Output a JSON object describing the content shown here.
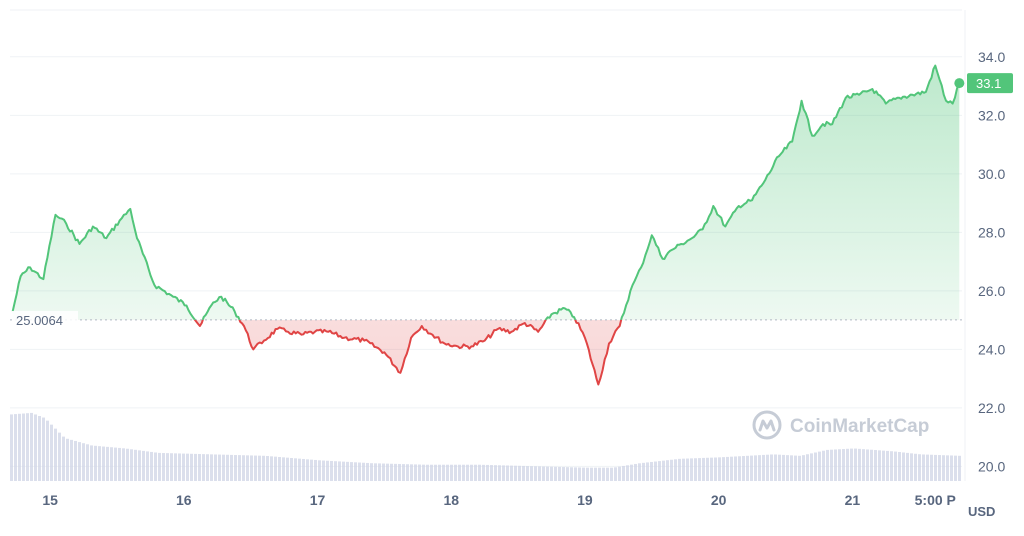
{
  "watermark": "CoinMarketCap",
  "colors": {
    "up": "#52c57a",
    "down": "#e04545",
    "grid": "#eff2f5",
    "volume": "#cfd4e6",
    "text": "#58667e",
    "watermark": "#c6ccd6"
  },
  "chart_data": {
    "type": "area",
    "unit": "USD",
    "baseline": {
      "value": 25.0064,
      "label": "25.0064"
    },
    "current_price": {
      "value": 33.1,
      "label": "33.1"
    },
    "ylim": [
      19.5,
      35.6
    ],
    "y_ticks": [
      "20.0",
      "22.0",
      "24.0",
      "26.0",
      "28.0",
      "30.0",
      "32.0",
      "34.0"
    ],
    "x_ticks": [
      "15",
      "16",
      "17",
      "18",
      "19",
      "20",
      "21",
      "5:00 P"
    ],
    "grid": true,
    "series": [
      {
        "x": [
          14.72,
          14.78,
          14.85,
          14.95,
          15.04,
          15.12,
          15.22,
          15.32,
          15.42,
          15.52,
          15.6,
          15.65,
          15.78,
          15.92,
          16.02,
          16.12,
          16.22,
          16.28,
          16.38,
          16.45,
          16.52,
          16.6,
          16.7,
          16.78,
          16.88,
          16.98,
          17.08,
          17.2,
          17.35,
          17.5,
          17.62,
          17.7,
          17.78,
          17.86,
          17.95,
          18.05,
          18.15,
          18.25,
          18.35,
          18.45,
          18.55,
          18.65,
          18.75,
          18.85,
          18.92,
          19.0,
          19.1,
          19.18,
          19.26,
          19.34,
          19.42,
          19.5,
          19.58,
          19.65,
          19.72,
          19.8,
          19.88,
          19.96,
          20.05,
          20.15,
          20.25,
          20.35,
          20.45,
          20.55,
          20.62,
          20.7,
          20.78,
          20.85,
          20.95,
          21.05,
          21.15,
          21.25,
          21.35,
          21.45,
          21.55,
          21.62,
          21.7,
          21.75,
          21.8
        ],
        "y": [
          25.3,
          26.5,
          26.8,
          26.4,
          28.6,
          28.3,
          27.6,
          28.2,
          27.8,
          28.4,
          28.8,
          27.8,
          26.2,
          25.8,
          25.5,
          24.8,
          25.6,
          25.8,
          25.3,
          24.8,
          24.0,
          24.3,
          24.7,
          24.6,
          24.5,
          24.6,
          24.6,
          24.4,
          24.3,
          23.9,
          23.2,
          24.4,
          24.8,
          24.5,
          24.2,
          24.1,
          24.1,
          24.3,
          24.7,
          24.6,
          24.9,
          24.6,
          25.2,
          25.4,
          25.1,
          24.4,
          22.8,
          24.2,
          24.8,
          26.0,
          26.8,
          27.9,
          27.1,
          27.4,
          27.6,
          27.8,
          28.1,
          28.9,
          28.2,
          28.9,
          29.1,
          29.8,
          30.6,
          31.1,
          32.5,
          31.3,
          31.7,
          31.7,
          32.6,
          32.7,
          32.9,
          32.4,
          32.6,
          32.7,
          32.8,
          33.7,
          32.5,
          32.4,
          33.1
        ]
      }
    ],
    "volume": {
      "x": [
        14.7,
        14.85,
        14.95,
        15.1,
        15.3,
        15.55,
        15.8,
        16.2,
        16.6,
        17.0,
        17.4,
        17.8,
        18.2,
        18.6,
        19.0,
        19.2,
        19.4,
        19.7,
        20.0,
        20.4,
        20.6,
        20.8,
        21.0,
        21.3,
        21.5,
        21.8
      ],
      "relative": [
        0.9,
        0.92,
        0.85,
        0.58,
        0.48,
        0.44,
        0.38,
        0.36,
        0.34,
        0.28,
        0.24,
        0.22,
        0.22,
        0.2,
        0.18,
        0.18,
        0.24,
        0.3,
        0.32,
        0.36,
        0.34,
        0.42,
        0.44,
        0.4,
        0.36,
        0.34
      ]
    }
  }
}
